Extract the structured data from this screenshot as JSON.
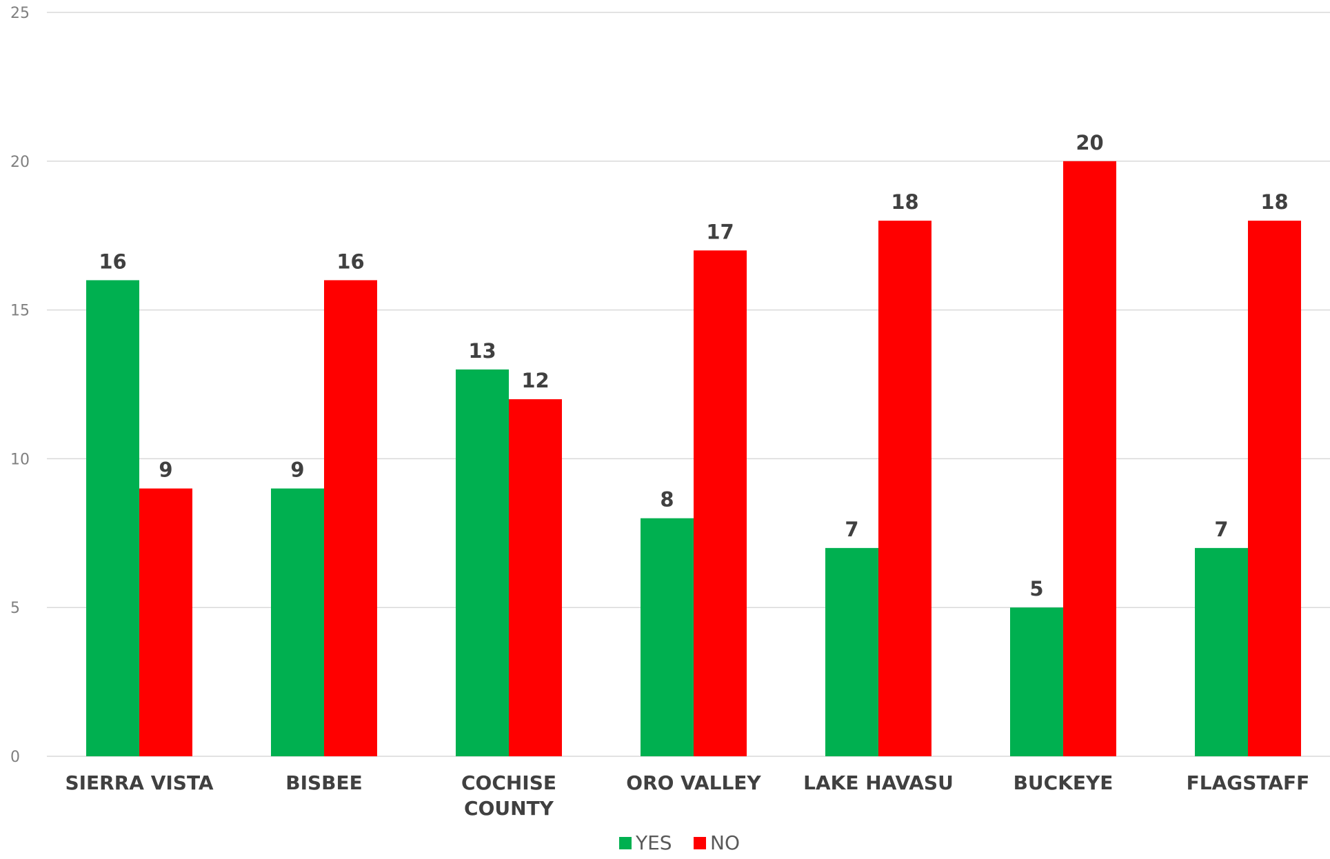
{
  "chart_data": {
    "type": "bar",
    "categories": [
      [
        "SIERRA VISTA"
      ],
      [
        "BISBEE"
      ],
      [
        "COCHISE",
        "COUNTY"
      ],
      [
        "ORO VALLEY"
      ],
      [
        "LAKE HAVASU"
      ],
      [
        "BUCKEYE"
      ],
      [
        "FLAGSTAFF"
      ]
    ],
    "series": [
      {
        "name": "YES",
        "color": "#00b050",
        "values": [
          16,
          9,
          13,
          8,
          7,
          5,
          7
        ]
      },
      {
        "name": "NO",
        "color": "#ff0000",
        "values": [
          9,
          16,
          12,
          17,
          18,
          20,
          18
        ]
      }
    ],
    "yticks": [
      "0",
      "5",
      "10",
      "15",
      "20",
      "25"
    ],
    "ylim": [
      0,
      25
    ],
    "grid": true,
    "legend_position": "bottom",
    "data_labels": true
  }
}
